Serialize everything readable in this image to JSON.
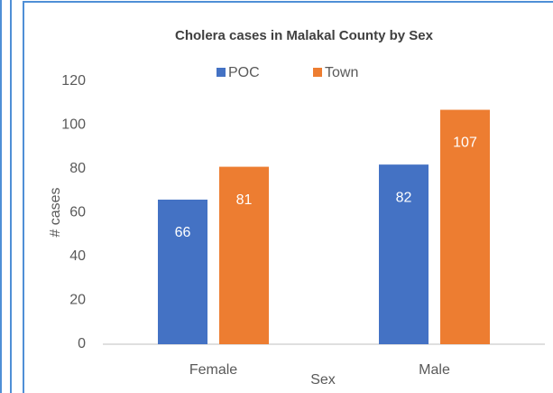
{
  "chart_data": {
    "type": "bar",
    "title": "Cholera cases in Malakal County by Sex",
    "categories": [
      "Female",
      "Male"
    ],
    "series": [
      {
        "name": "POC",
        "color": "#4472c4",
        "values": [
          66,
          82
        ]
      },
      {
        "name": "Town",
        "color": "#ed7d31",
        "values": [
          81,
          107
        ]
      }
    ],
    "x_label": "Sex",
    "y_label": "# cases",
    "ylim": [
      0,
      120
    ],
    "yticks": [
      0,
      20,
      40,
      60,
      80,
      100,
      120
    ],
    "grid": false,
    "legend": "top"
  }
}
